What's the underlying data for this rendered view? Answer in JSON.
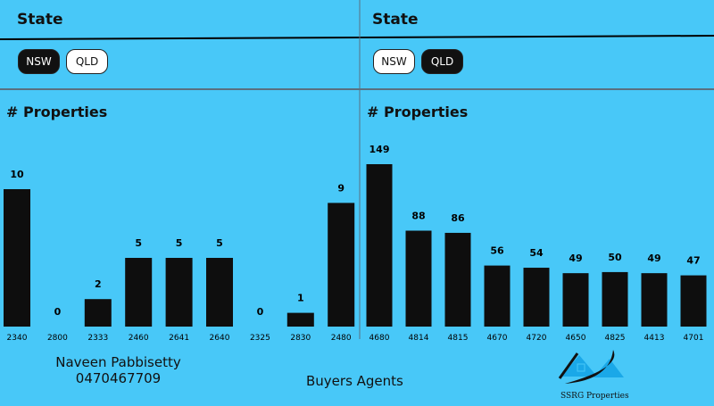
{
  "left": {
    "slicer_title": "State",
    "options": [
      "NSW",
      "QLD"
    ],
    "selected": "NSW"
  },
  "right": {
    "slicer_title": "State",
    "options": [
      "NSW",
      "QLD"
    ],
    "selected": "QLD"
  },
  "chart_data": [
    {
      "type": "bar",
      "title": "# Properties",
      "categories": [
        "2340",
        "2800",
        "2333",
        "2460",
        "2641",
        "2640",
        "2325",
        "2830",
        "2480"
      ],
      "values": [
        10,
        0,
        2,
        5,
        5,
        5,
        0,
        1,
        9
      ],
      "ylim": [
        0,
        10
      ]
    },
    {
      "type": "bar",
      "title": "# Properties",
      "categories": [
        "4680",
        "4814",
        "4815",
        "4670",
        "4720",
        "4650",
        "4825",
        "4413",
        "4701"
      ],
      "values": [
        149,
        88,
        86,
        56,
        54,
        49,
        50,
        49,
        47
      ],
      "ylim": [
        0,
        149
      ]
    }
  ],
  "footer": {
    "name": "Naveen Pabbisetty",
    "phone": "0470467709",
    "tagline": "Buyers Agents",
    "logo_text": "SSRG Properties"
  },
  "colors": {
    "background": "#48C8F8",
    "bar": "#0E0E0E"
  }
}
